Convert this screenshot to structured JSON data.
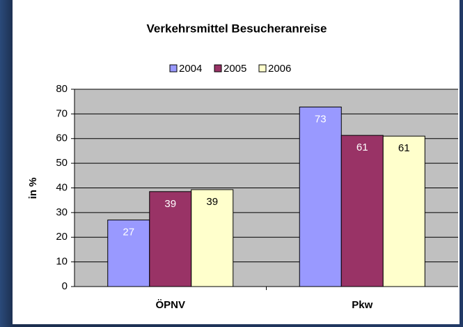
{
  "chart_data": {
    "type": "bar",
    "title": "Verkehrsmittel Besucheranreise",
    "y_label": "in %",
    "categories": [
      "ÖPNV",
      "Pkw"
    ],
    "series": [
      {
        "name": "2004",
        "color": "#9999ff",
        "values": [
          27,
          72.8
        ],
        "value_labels": [
          "27",
          "73"
        ]
      },
      {
        "name": "2005",
        "color": "#993366",
        "values": [
          38.5,
          61.3
        ],
        "value_labels": [
          "39",
          "61"
        ]
      },
      {
        "name": "2006",
        "color": "#ffffcc",
        "values": [
          39.3,
          61
        ],
        "value_labels": [
          "39",
          "61"
        ]
      }
    ],
    "ylim": [
      0,
      80
    ],
    "yticks": [
      0,
      10,
      20,
      30,
      40,
      50,
      60,
      70,
      80
    ],
    "grid": true,
    "legend": "top"
  }
}
